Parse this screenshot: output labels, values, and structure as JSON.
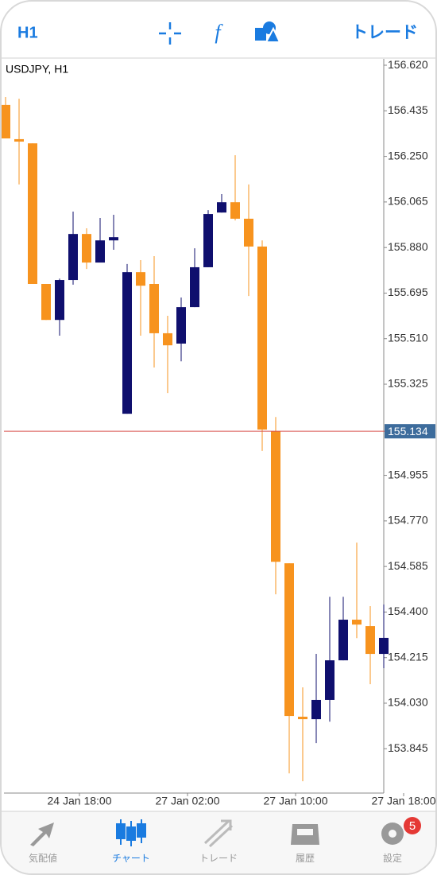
{
  "header": {
    "timeframe": "H1",
    "trade": "トレード"
  },
  "chart_data": {
    "type": "candlestick",
    "title": "USDJPY, H1",
    "categories": [
      null,
      null,
      null,
      null,
      null,
      "24 Jan 18:00",
      null,
      null,
      null,
      null,
      null,
      null,
      null,
      "27 Jan 02:00",
      null,
      null,
      null,
      null,
      null,
      null,
      null,
      "27 Jan 10:00",
      null,
      null,
      null,
      null,
      null,
      null,
      null,
      "27 Jan 18:00"
    ],
    "series": [
      {
        "name": "USDJPY",
        "open": [
          156.459,
          156.32,
          156.303,
          155.732,
          155.586,
          155.748,
          155.935,
          155.819,
          155.909,
          155.205,
          155.78,
          155.732,
          155.532,
          155.49,
          155.638,
          155.8,
          156.022,
          156.064,
          155.997,
          155.884,
          155.134,
          154.598,
          153.975,
          153.965,
          154.043,
          154.204,
          154.369,
          154.343,
          154.23,
          null
        ],
        "high": [
          156.491,
          156.484,
          156.303,
          155.732,
          155.754,
          156.026,
          155.958,
          156.0,
          156.013,
          155.813,
          155.829,
          155.845,
          155.603,
          155.677,
          155.877,
          156.032,
          156.097,
          156.255,
          156.136,
          155.909,
          155.192,
          154.598,
          154.094,
          154.23,
          154.462,
          154.462,
          154.682,
          154.424,
          154.431,
          null
        ],
        "low": [
          156.323,
          156.136,
          155.732,
          155.586,
          155.522,
          155.729,
          155.793,
          155.819,
          155.871,
          155.205,
          155.522,
          155.393,
          155.289,
          155.418,
          155.638,
          155.8,
          156.022,
          155.99,
          155.683,
          155.054,
          154.472,
          153.745,
          153.713,
          153.868,
          153.955,
          154.204,
          154.294,
          154.107,
          154.172,
          null
        ],
        "close": [
          156.323,
          156.31,
          155.732,
          155.586,
          155.748,
          155.935,
          155.819,
          155.909,
          155.922,
          155.78,
          155.725,
          155.532,
          155.483,
          155.638,
          155.8,
          156.016,
          156.064,
          155.997,
          155.884,
          155.141,
          154.604,
          153.978,
          153.965,
          154.043,
          154.204,
          154.369,
          154.349,
          154.23,
          154.295,
          null
        ]
      }
    ],
    "up_color": "#0f0f6e",
    "down_color": "#f7931e",
    "ylim": [
      153.665,
      156.646
    ],
    "yticks": [
      {
        "value": 156.62,
        "label": "156.620"
      },
      156.435,
      {
        "value": 156.25,
        "label": "156.250"
      },
      156.065,
      {
        "value": 155.88,
        "label": "155.880"
      },
      155.695,
      {
        "value": 155.51,
        "label": "155.510"
      },
      155.325,
      154.955,
      {
        "value": 154.77,
        "label": "154.770"
      },
      154.585,
      {
        "value": 154.4,
        "label": "154.400"
      },
      154.215,
      {
        "value": 154.03,
        "label": "154.030"
      },
      153.845
    ],
    "current_price": 155.134,
    "current_price_color": "#d9534f"
  },
  "tabs": [
    "気配値",
    "チャート",
    "トレード",
    "履歴",
    "設定"
  ],
  "badge": "5"
}
